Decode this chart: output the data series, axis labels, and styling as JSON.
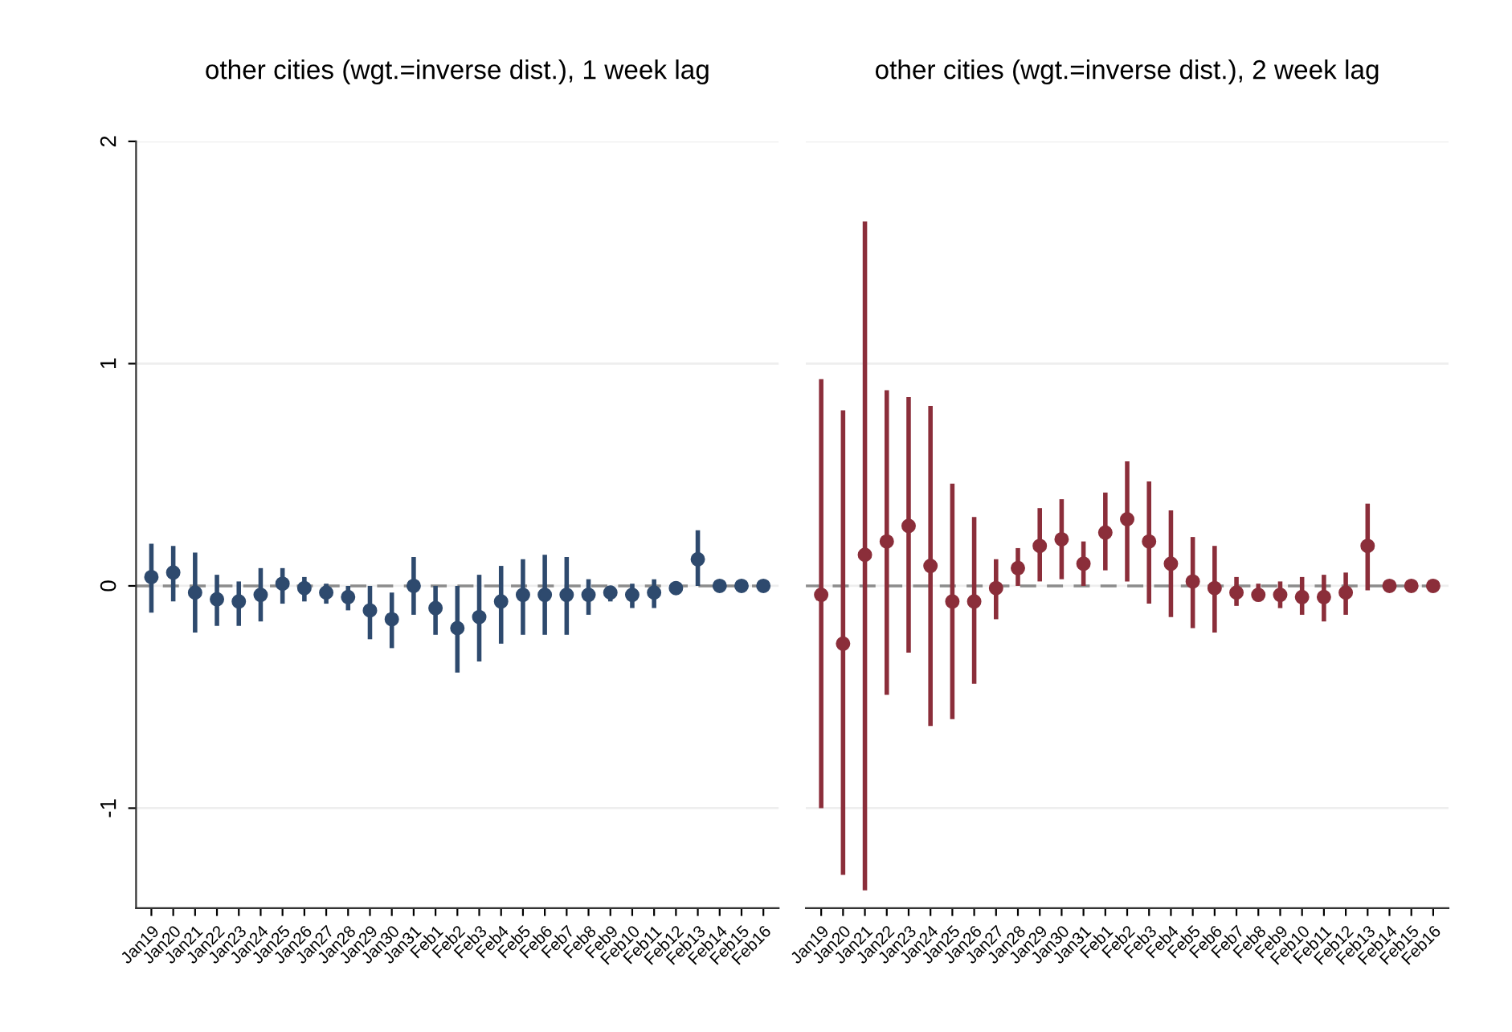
{
  "chart_data": [
    {
      "type": "scatter",
      "title": "other cities (wgt.=inverse dist.), 1 week lag",
      "categories": [
        "Jan19",
        "Jan20",
        "Jan21",
        "Jan22",
        "Jan23",
        "Jan24",
        "Jan25",
        "Jan26",
        "Jan27",
        "Jan28",
        "Jan29",
        "Jan30",
        "Jan31",
        "Feb1",
        "Feb2",
        "Feb3",
        "Feb4",
        "Feb5",
        "Feb6",
        "Feb7",
        "Feb8",
        "Feb9",
        "Feb10",
        "Feb11",
        "Feb12",
        "Feb13",
        "Feb14",
        "Feb15",
        "Feb16"
      ],
      "series": [
        {
          "color": "#2e4a6e",
          "values": [
            0.04,
            0.06,
            -0.03,
            -0.06,
            -0.07,
            -0.04,
            0.01,
            -0.01,
            -0.03,
            -0.05,
            -0.11,
            -0.15,
            0.0,
            -0.1,
            -0.19,
            -0.14,
            -0.07,
            -0.04,
            -0.04,
            -0.04,
            -0.04,
            -0.03,
            -0.04,
            -0.03,
            -0.01,
            0.12,
            0.0,
            0.0,
            0.0
          ],
          "errors": [
            [
              -0.12,
              0.19
            ],
            [
              -0.07,
              0.18
            ],
            [
              -0.21,
              0.15
            ],
            [
              -0.18,
              0.05
            ],
            [
              -0.18,
              0.02
            ],
            [
              -0.16,
              0.08
            ],
            [
              -0.08,
              0.08
            ],
            [
              -0.07,
              0.04
            ],
            [
              -0.08,
              0.01
            ],
            [
              -0.11,
              0.0
            ],
            [
              -0.24,
              0.0
            ],
            [
              -0.28,
              -0.03
            ],
            [
              -0.13,
              0.13
            ],
            [
              -0.22,
              0.0
            ],
            [
              -0.39,
              0.0
            ],
            [
              -0.34,
              0.05
            ],
            [
              -0.26,
              0.09
            ],
            [
              -0.22,
              0.12
            ],
            [
              -0.22,
              0.14
            ],
            [
              -0.22,
              0.13
            ],
            [
              -0.13,
              0.03
            ],
            [
              -0.07,
              0.0
            ],
            [
              -0.1,
              0.01
            ],
            [
              -0.1,
              0.03
            ],
            [
              -0.04,
              0.02
            ],
            [
              0.0,
              0.25
            ],
            null,
            null,
            null
          ]
        }
      ],
      "ylim": [
        -1.45,
        2
      ],
      "yticks": [
        -1,
        0,
        1,
        2
      ],
      "grid": "y",
      "marker": "circle",
      "ref_lines": [
        {
          "axis": "y",
          "value": 0,
          "color": "#8c8c8c",
          "line_style": "dashed"
        }
      ]
    },
    {
      "type": "scatter",
      "title": "other cities (wgt.=inverse dist.), 2 week lag",
      "categories": [
        "Jan19",
        "Jan20",
        "Jan21",
        "Jan22",
        "Jan23",
        "Jan24",
        "Jan25",
        "Jan26",
        "Jan27",
        "Jan28",
        "Jan29",
        "Jan30",
        "Jan31",
        "Feb1",
        "Feb2",
        "Feb3",
        "Feb4",
        "Feb5",
        "Feb6",
        "Feb7",
        "Feb8",
        "Feb9",
        "Feb10",
        "Feb11",
        "Feb12",
        "Feb13",
        "Feb14",
        "Feb15",
        "Feb16"
      ],
      "series": [
        {
          "color": "#8b2e3a",
          "values": [
            -0.04,
            -0.26,
            0.14,
            0.2,
            0.27,
            0.09,
            -0.07,
            -0.07,
            -0.01,
            0.08,
            0.18,
            0.21,
            0.1,
            0.24,
            0.3,
            0.2,
            0.1,
            0.02,
            -0.01,
            -0.03,
            -0.04,
            -0.04,
            -0.05,
            -0.05,
            -0.03,
            0.18,
            0.0,
            0.0,
            0.0
          ],
          "errors": [
            [
              -1.0,
              0.93
            ],
            [
              -1.3,
              0.79
            ],
            [
              -1.37,
              1.64
            ],
            [
              -0.49,
              0.88
            ],
            [
              -0.3,
              0.85
            ],
            [
              -0.63,
              0.81
            ],
            [
              -0.6,
              0.46
            ],
            [
              -0.44,
              0.31
            ],
            [
              -0.15,
              0.12
            ],
            [
              0.0,
              0.17
            ],
            [
              0.02,
              0.35
            ],
            [
              0.03,
              0.39
            ],
            [
              0.0,
              0.2
            ],
            [
              0.07,
              0.42
            ],
            [
              0.02,
              0.56
            ],
            [
              -0.08,
              0.47
            ],
            [
              -0.14,
              0.34
            ],
            [
              -0.19,
              0.22
            ],
            [
              -0.21,
              0.18
            ],
            [
              -0.09,
              0.04
            ],
            [
              -0.07,
              0.01
            ],
            [
              -0.1,
              0.02
            ],
            [
              -0.13,
              0.04
            ],
            [
              -0.16,
              0.05
            ],
            [
              -0.13,
              0.06
            ],
            [
              -0.02,
              0.37
            ],
            null,
            null,
            null
          ]
        }
      ],
      "ylim": [
        -1.45,
        2
      ],
      "yticks": [
        -1,
        0,
        1,
        2
      ],
      "grid": "y",
      "marker": "circle",
      "tick_labels": "x",
      "ref_lines": [
        {
          "axis": "y",
          "value": 0,
          "color": "#8c8c8c",
          "line_style": "dashed"
        }
      ]
    }
  ]
}
